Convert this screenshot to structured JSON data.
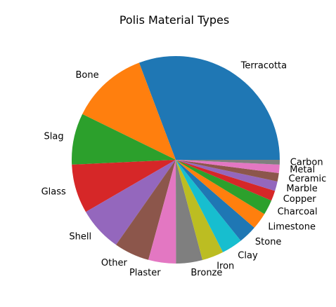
{
  "chart_data": {
    "type": "pie",
    "title": "Polis Material Types",
    "start_angle_deg": 0,
    "direction": "counterclockwise",
    "slices": [
      {
        "label": "Terracotta",
        "value": 33.0,
        "color": "#1f77b4"
      },
      {
        "label": "Bone",
        "value": 12.9,
        "color": "#ff7f0e"
      },
      {
        "label": "Slag",
        "value": 8.6,
        "color": "#2ca02c"
      },
      {
        "label": "Glass",
        "value": 8.2,
        "color": "#d62728"
      },
      {
        "label": "Shell",
        "value": 7.4,
        "color": "#9467bd"
      },
      {
        "label": "Other",
        "value": 5.9,
        "color": "#8c564b"
      },
      {
        "label": "Plaster",
        "value": 4.6,
        "color": "#e377c2"
      },
      {
        "label": "Bronze",
        "value": 4.4,
        "color": "#7f7f7f"
      },
      {
        "label": "Iron",
        "value": 3.6,
        "color": "#bcbd22"
      },
      {
        "label": "Clay",
        "value": 3.5,
        "color": "#17becf"
      },
      {
        "label": "Stone",
        "value": 3.1,
        "color": "#1f77b4"
      },
      {
        "label": "Limestone",
        "value": 2.8,
        "color": "#ff7f0e"
      },
      {
        "label": "Charcoal",
        "value": 2.5,
        "color": "#2ca02c"
      },
      {
        "label": "Copper",
        "value": 1.7,
        "color": "#d62728"
      },
      {
        "label": "Marble",
        "value": 1.6,
        "color": "#9467bd"
      },
      {
        "label": "Ceramic",
        "value": 1.4,
        "color": "#8c564b"
      },
      {
        "label": "Metal",
        "value": 1.4,
        "color": "#e377c2"
      },
      {
        "label": "Carbon",
        "value": 0.8,
        "color": "#7f7f7f"
      }
    ]
  }
}
